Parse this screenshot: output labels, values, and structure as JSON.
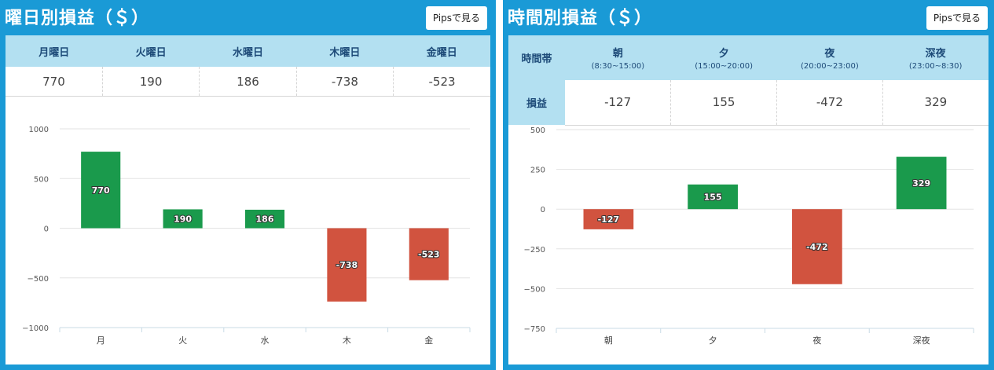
{
  "weekday": {
    "title": "曜日別損益（＄）",
    "pips_button": "Pipsで見る",
    "headers": [
      "月曜日",
      "火曜日",
      "水曜日",
      "木曜日",
      "金曜日"
    ],
    "values": [
      "770",
      "190",
      "186",
      "-738",
      "-523"
    ]
  },
  "timeband": {
    "title": "時間別損益（＄）",
    "pips_button": "Pipsで見る",
    "row_header": "時間帯",
    "value_row_label": "損益",
    "headers": [
      {
        "name": "朝",
        "range": "(8:30~15:00)"
      },
      {
        "name": "夕",
        "range": "(15:00~20:00)"
      },
      {
        "name": "夜",
        "range": "(20:00~23:00)"
      },
      {
        "name": "深夜",
        "range": "(23:00~8:30)"
      }
    ],
    "values": [
      "-127",
      "155",
      "-472",
      "329"
    ]
  },
  "colors": {
    "positive": "#1a9a4c",
    "negative": "#d1533f",
    "panel": "#1a9ad6",
    "header": "#b3e0f1"
  },
  "chart_data": [
    {
      "type": "bar",
      "categories": [
        "月",
        "火",
        "水",
        "木",
        "金"
      ],
      "values": [
        770,
        190,
        186,
        -738,
        -523
      ],
      "data_labels": [
        "770",
        "190",
        "186",
        "-738",
        "-523"
      ],
      "ylim": [
        -1000,
        1000
      ],
      "yticks": [
        1000,
        500,
        0,
        -500,
        -1000
      ],
      "ytick_labels": [
        "1000",
        "500",
        "0",
        "−500",
        "−1000"
      ],
      "grid": true
    },
    {
      "type": "bar",
      "categories": [
        "朝",
        "夕",
        "夜",
        "深夜"
      ],
      "values": [
        -127,
        155,
        -472,
        329
      ],
      "data_labels": [
        "-127",
        "155",
        "-472",
        "329"
      ],
      "ylim": [
        -750,
        500
      ],
      "yticks": [
        500,
        250,
        0,
        -250,
        -500,
        -750
      ],
      "ytick_labels": [
        "500",
        "250",
        "0",
        "−250",
        "−500",
        "−750"
      ],
      "grid": true
    }
  ]
}
